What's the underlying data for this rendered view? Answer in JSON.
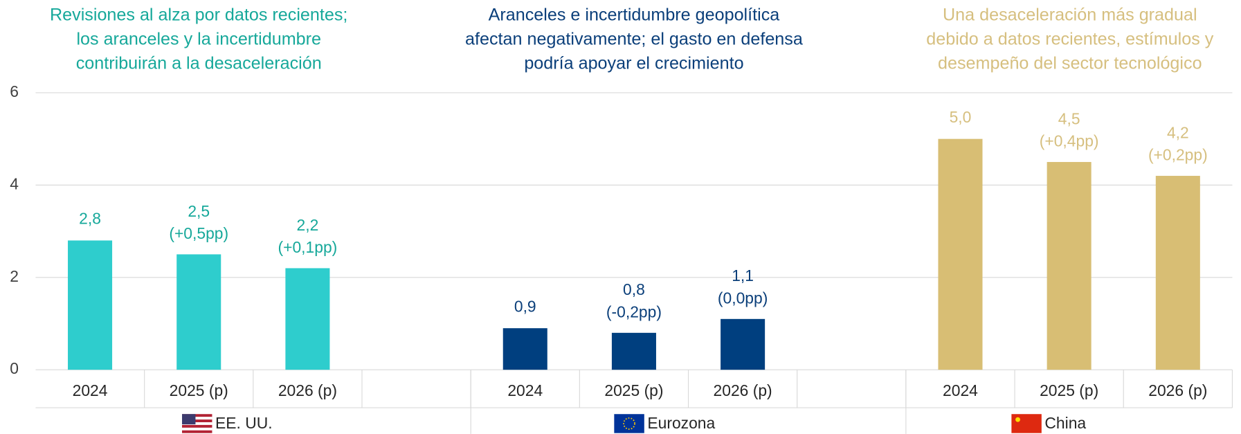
{
  "chart_data": {
    "type": "bar",
    "ylim": [
      0,
      6
    ],
    "yticks": [
      0,
      2,
      4,
      6
    ],
    "grid": true,
    "groups": [
      {
        "name": "EE. UU.",
        "color": "#2ecdcd",
        "title_color": "#16a89a",
        "title": [
          "Revisiones al alza por datos recientes;",
          "los aranceles y la incertidumbre",
          "contribuirán a la desaceleración"
        ],
        "categories": [
          "2024",
          "2025 (p)",
          "2026 (p)"
        ],
        "values": [
          2.8,
          2.5,
          2.2
        ],
        "value_labels": [
          "2,8",
          "2,5",
          "2,2"
        ],
        "changes": [
          null,
          "(+0,5pp)",
          "(+0,1pp)"
        ]
      },
      {
        "name": "Eurozona",
        "color": "#003f7f",
        "title_color": "#0b3f7a",
        "title": [
          "Aranceles e incertidumbre geopolítica",
          "afectan negativamente; el gasto en defensa",
          "podría apoyar el crecimiento"
        ],
        "categories": [
          "2024",
          "2025 (p)",
          "2026 (p)"
        ],
        "values": [
          0.9,
          0.8,
          1.1
        ],
        "value_labels": [
          "0,9",
          "0,8",
          "1,1"
        ],
        "changes": [
          null,
          "(-0,2pp)",
          "(0,0pp)"
        ]
      },
      {
        "name": "China",
        "color": "#d8be74",
        "title_color": "#d6bf7f",
        "title": [
          "Una desaceleración más gradual",
          "debido a datos recientes, estímulos y",
          "desempeño del sector tecnológico"
        ],
        "categories": [
          "2024",
          "2025 (p)",
          "2026 (p)"
        ],
        "values": [
          5.0,
          4.5,
          4.2
        ],
        "value_labels": [
          "5,0",
          "4,5",
          "4,2"
        ],
        "changes": [
          null,
          "(+0,4pp)",
          "(+0,2pp)"
        ]
      }
    ]
  }
}
